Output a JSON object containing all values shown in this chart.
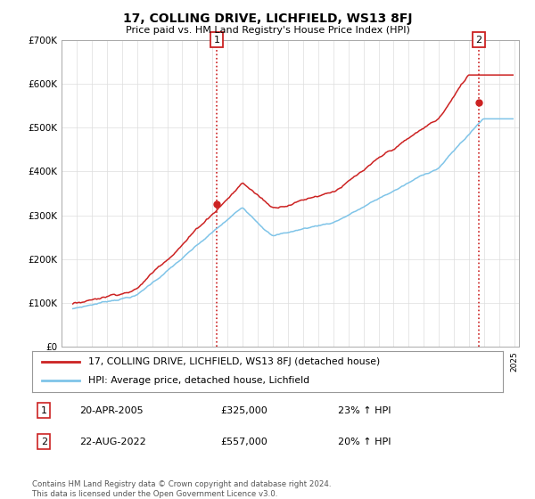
{
  "title": "17, COLLING DRIVE, LICHFIELD, WS13 8FJ",
  "subtitle": "Price paid vs. HM Land Registry's House Price Index (HPI)",
  "ylim": [
    0,
    700000
  ],
  "xlim_start": 1995.5,
  "xlim_end": 2025.3,
  "hpi_color": "#7fc4e8",
  "price_color": "#cc2222",
  "vline_color": "#cc2222",
  "transaction1_year": 2005.3,
  "transaction1_price": 325000,
  "transaction1_label": "1",
  "transaction2_year": 2022.63,
  "transaction2_price": 557000,
  "transaction2_label": "2",
  "legend_line1": "17, COLLING DRIVE, LICHFIELD, WS13 8FJ (detached house)",
  "legend_line2": "HPI: Average price, detached house, Lichfield",
  "note1_num": "1",
  "note1_date": "20-APR-2005",
  "note1_price": "£325,000",
  "note1_pct": "23% ↑ HPI",
  "note2_num": "2",
  "note2_date": "22-AUG-2022",
  "note2_price": "£557,000",
  "note2_pct": "20% ↑ HPI",
  "footer": "Contains HM Land Registry data © Crown copyright and database right 2024.\nThis data is licensed under the Open Government Licence v3.0.",
  "background_color": "#ffffff",
  "grid_color": "#dddddd"
}
